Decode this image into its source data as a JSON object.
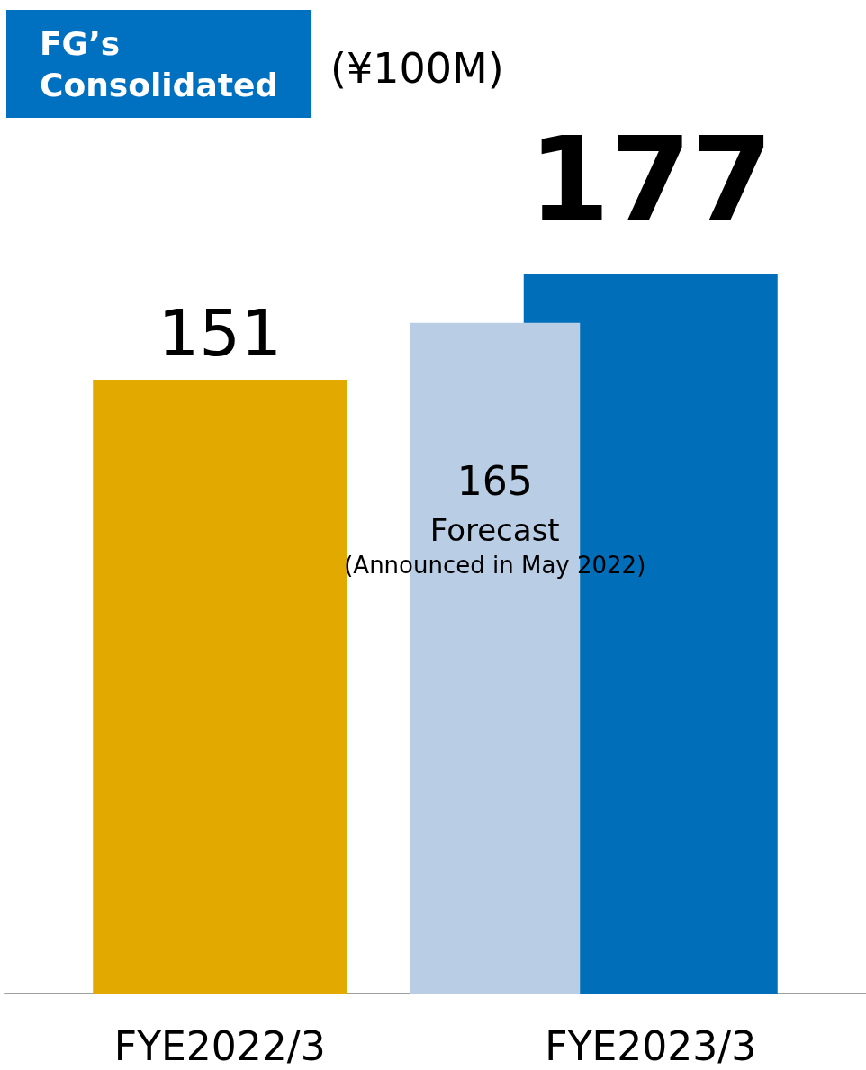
{
  "chart_data": {
    "type": "bar",
    "title": "FG’s\nConsolidated",
    "subtitle": "(¥100M)",
    "categories": [
      "FYE2022/3",
      "FYE2023/3"
    ],
    "series": [
      {
        "colors": [
          "#e2a900",
          "#006eb9"
        ],
        "values": [
          151,
          177
        ]
      },
      {
        "name": "Forecast",
        "color": "#b9cde5",
        "values": [
          null,
          165
        ]
      }
    ],
    "annotations": [
      "(Announced in May 2022)"
    ],
    "data_labels": true,
    "grid": false,
    "legend": false
  }
}
